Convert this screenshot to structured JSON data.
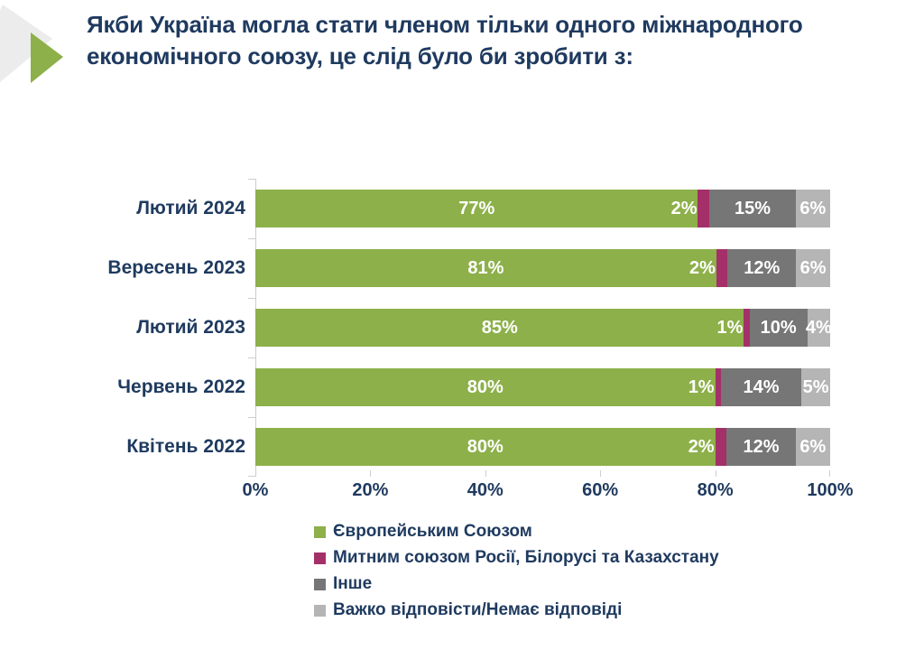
{
  "page": {
    "title": "Якби Україна могла стати членом тільки одного міжнародного економічного союзу, це слід було би зробити з:",
    "colors": {
      "navy": "#1F3A5F",
      "accent_green": "#8DB04A",
      "decor_gray": "#ECECEC",
      "axis_gray": "#C9CED4",
      "bar_value_text": "#FFFFFF"
    },
    "icons": {
      "decoration": "green-arrow-triangles"
    }
  },
  "chart_data": {
    "type": "bar",
    "orientation": "horizontal",
    "stacked": true,
    "title": "",
    "xlabel": "",
    "ylabel": "",
    "xlim": [
      0,
      100
    ],
    "grid": false,
    "legend_position": "bottom",
    "value_suffix": "%",
    "categories": [
      "Лютий 2024",
      "Вересень 2023",
      "Лютий 2023",
      "Червень 2022",
      "Квітень 2022"
    ],
    "series": [
      {
        "name": "Європейським Союзом",
        "color": "#8DB04A",
        "values": [
          77,
          81,
          85,
          80,
          80
        ]
      },
      {
        "name": "Митним союзом Росії, Білорусі та Казахстану",
        "color": "#A43069",
        "values": [
          2,
          2,
          1,
          1,
          2
        ]
      },
      {
        "name": "Інше",
        "color": "#767676",
        "values": [
          15,
          12,
          10,
          14,
          12
        ]
      },
      {
        "name": "Важко відповісти/Немає відповіді",
        "color": "#B5B5B5",
        "values": [
          6,
          6,
          4,
          5,
          6
        ]
      }
    ],
    "x_ticks": [
      "0%",
      "20%",
      "40%",
      "60%",
      "80%",
      "100%"
    ]
  }
}
